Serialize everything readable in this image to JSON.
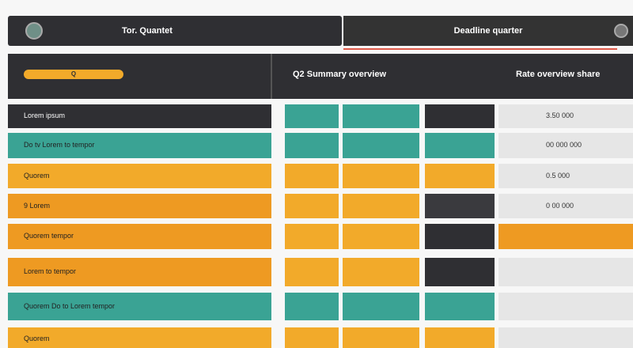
{
  "header": {
    "left_title": "Tor. Quantet",
    "right_title": "Deadline quarter"
  },
  "panel": {
    "pill_text": "Q",
    "middle_title": "Q2 Summary overview",
    "right_title": "Rate overview share"
  },
  "rows": [
    {
      "label": "Lorem ipsum",
      "color": "#2f2f33",
      "cells": [
        "#3aa394",
        "#3aa394",
        "#2f2f33",
        "#e6e6e6"
      ],
      "right": "3.50 000"
    },
    {
      "label": "Do tv Lorem to tempor",
      "color": "#3aa394",
      "cells": [
        "#3aa394",
        "#3aa394",
        "#3aa394",
        "#e6e6e6"
      ],
      "right": "00 000 000"
    },
    {
      "label": "Quorem",
      "color": "#f2aa2a",
      "cells": [
        "#f2aa2a",
        "#f2aa2a",
        "#f2aa2a",
        "#e6e6e6"
      ],
      "right": "0.5 000"
    },
    {
      "label": "9 Lorem",
      "color": "#ee9a22",
      "cells": [
        "#f2aa2a",
        "#f2aa2a",
        "#3a3a3e",
        "#e6e6e6"
      ],
      "right": "0 00 000"
    },
    {
      "label": "Quorem tempor",
      "color": "#ee9a22",
      "cells": [
        "#f2aa2a",
        "#f2aa2a",
        "#2f2f33",
        "#ee9a22"
      ],
      "right": null
    },
    {
      "label": "Lorem to tempor",
      "color": "#ee9a22",
      "cells": [
        "#f2aa2a",
        "#f2aa2a",
        "#2f2f33",
        "#e6e6e6"
      ],
      "right": null
    },
    {
      "label": "Quorem Do to Lorem tempor",
      "color": "#3aa394",
      "cells": [
        "#3aa394",
        "#3aa394",
        "#3aa394",
        "#e6e6e6"
      ],
      "right": null
    },
    {
      "label": "Quorem",
      "color": "#f2aa2a",
      "cells": [
        "#f2aa2a",
        "#f2aa2a",
        "#f2aa2a",
        "#e6e6e6"
      ],
      "right": null
    }
  ]
}
